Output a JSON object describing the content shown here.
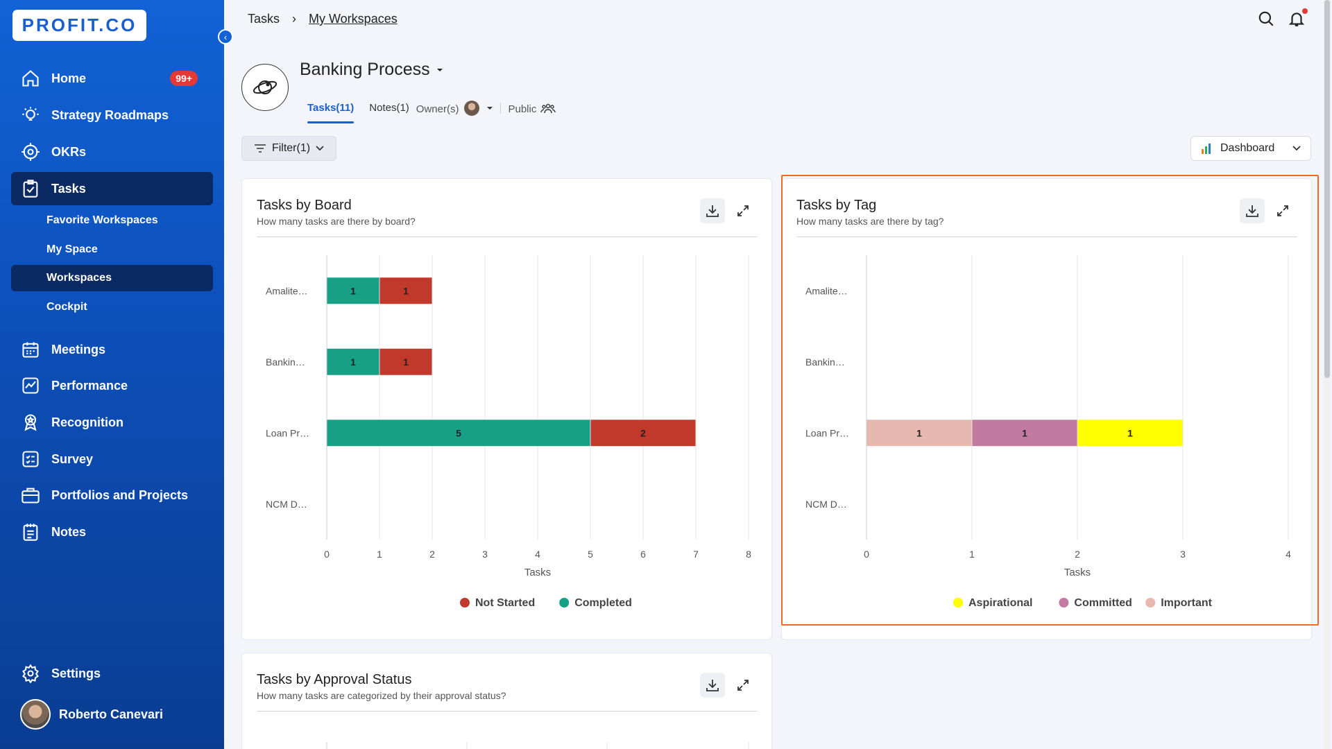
{
  "app": {
    "logo": "PROFIT.CO"
  },
  "sidebar": {
    "home": {
      "label": "Home",
      "badge": "99+"
    },
    "items": [
      {
        "label": "Strategy Roadmaps"
      },
      {
        "label": "OKRs"
      },
      {
        "label": "Tasks"
      }
    ],
    "sub_items": [
      {
        "label": "Favorite Workspaces"
      },
      {
        "label": "My Space"
      },
      {
        "label": "Workspaces"
      },
      {
        "label": "Cockpit"
      }
    ],
    "more": [
      {
        "label": "Meetings"
      },
      {
        "label": "Performance"
      },
      {
        "label": "Recognition"
      },
      {
        "label": "Survey"
      },
      {
        "label": "Portfolios and Projects"
      },
      {
        "label": "Notes"
      }
    ],
    "settings": "Settings",
    "user": "Roberto Canevari"
  },
  "breadcrumb": {
    "root": "Tasks",
    "separator": "›",
    "current": "My Workspaces"
  },
  "workspace": {
    "title": "Banking Process",
    "tab_tasks": "Tasks(11)",
    "tab_notes": "Notes(1)",
    "owners": "Owner(s)",
    "visibility": "Public"
  },
  "toolbar": {
    "filter": "Filter(1)",
    "view": "Dashboard"
  },
  "colors": {
    "completed": "#17a085",
    "not_started": "#c0392b",
    "aspirational": "#ffff00",
    "committed": "#c27ba0",
    "important": "#e6b8af"
  },
  "cards": {
    "board": {
      "title": "Tasks by Board",
      "subtitle": "How many tasks are there by board?"
    },
    "tag": {
      "title": "Tasks by Tag",
      "subtitle": "How many tasks are there by tag?"
    },
    "approval": {
      "title": "Tasks by Approval Status",
      "subtitle": "How many tasks are categorized by their approval status?"
    }
  },
  "chart_data": [
    {
      "type": "bar",
      "orientation": "horizontal",
      "stacked": true,
      "title": "Tasks by Board",
      "categories": [
        "Amalite…",
        "Bankin…",
        "Loan Pr…",
        "NCM D…"
      ],
      "series": [
        {
          "name": "Completed",
          "color": "#17a085",
          "values": [
            1,
            1,
            5,
            0
          ]
        },
        {
          "name": "Not Started",
          "color": "#c0392b",
          "values": [
            1,
            1,
            2,
            0
          ]
        }
      ],
      "xlabel": "Tasks",
      "xlim": [
        0,
        8
      ],
      "xticks": [
        0,
        1,
        2,
        3,
        4,
        5,
        6,
        7,
        8
      ],
      "legend": [
        "Not Started",
        "Completed"
      ],
      "legend_position": "bottom"
    },
    {
      "type": "bar",
      "orientation": "horizontal",
      "stacked": true,
      "title": "Tasks by Tag",
      "categories": [
        "Amalite…",
        "Bankin…",
        "Loan Pr…",
        "NCM D…"
      ],
      "series": [
        {
          "name": "Important",
          "color": "#e6b8af",
          "values": [
            0,
            0,
            1,
            0
          ]
        },
        {
          "name": "Committed",
          "color": "#c27ba0",
          "values": [
            0,
            0,
            1,
            0
          ]
        },
        {
          "name": "Aspirational",
          "color": "#ffff00",
          "values": [
            0,
            0,
            1,
            0
          ]
        }
      ],
      "xlabel": "Tasks",
      "xlim": [
        0,
        4
      ],
      "xticks": [
        0,
        1,
        2,
        3,
        4
      ],
      "legend": [
        "Aspirational",
        "Committed",
        "Important"
      ],
      "legend_position": "bottom"
    }
  ]
}
